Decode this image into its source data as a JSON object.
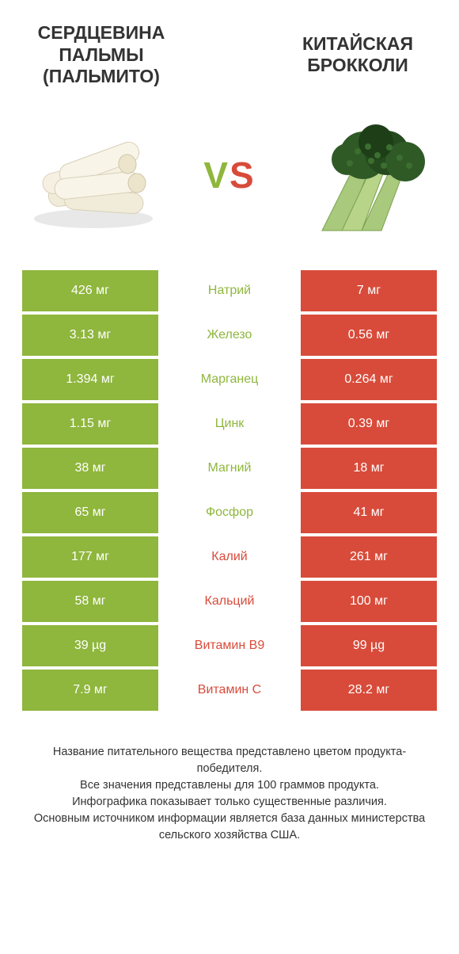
{
  "colors": {
    "left": "#8fb63d",
    "right": "#d84b3a",
    "white": "#ffffff",
    "text": "#333333"
  },
  "left_title": "СЕРДЦЕВИНА ПАЛЬМЫ (ПАЛЬМИТО)",
  "right_title": "КИТАЙСКАЯ БРОККОЛИ",
  "vs_v": "V",
  "vs_s": "S",
  "rows": [
    {
      "label": "Натрий",
      "left": "426 мг",
      "right": "7 мг",
      "winner": "left"
    },
    {
      "label": "Железо",
      "left": "3.13 мг",
      "right": "0.56 мг",
      "winner": "left"
    },
    {
      "label": "Марганец",
      "left": "1.394 мг",
      "right": "0.264 мг",
      "winner": "left"
    },
    {
      "label": "Цинк",
      "left": "1.15 мг",
      "right": "0.39 мг",
      "winner": "left"
    },
    {
      "label": "Магний",
      "left": "38 мг",
      "right": "18 мг",
      "winner": "left"
    },
    {
      "label": "Фосфор",
      "left": "65 мг",
      "right": "41 мг",
      "winner": "left"
    },
    {
      "label": "Калий",
      "left": "177 мг",
      "right": "261 мг",
      "winner": "right"
    },
    {
      "label": "Кальций",
      "left": "58 мг",
      "right": "100 мг",
      "winner": "right"
    },
    {
      "label": "Витамин B9",
      "left": "39 µg",
      "right": "99 µg",
      "winner": "right"
    },
    {
      "label": "Витамин C",
      "left": "7.9 мг",
      "right": "28.2 мг",
      "winner": "right"
    }
  ],
  "footer_lines": [
    "Название питательного вещества представлено цветом продукта-победителя.",
    "Все значения представлены для 100 граммов продукта.",
    "Инфографика показывает только существенные различия.",
    "Основным источником информации является база данных министерства сельского хозяйства США."
  ]
}
